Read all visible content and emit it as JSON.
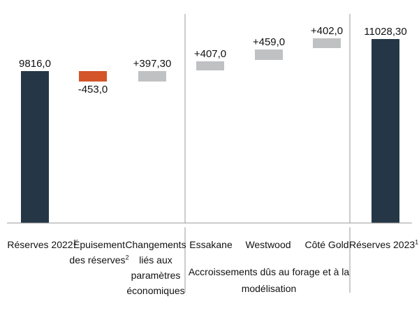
{
  "chart_data": {
    "type": "waterfall",
    "categories": [
      {
        "label": "Réserves 2022",
        "sup": "1"
      },
      {
        "label": "Épuisement des réserves",
        "sup": "2"
      },
      {
        "label": "Changements liés aux paramètres économiques",
        "sup": ""
      },
      {
        "label": "Essakane",
        "sup": ""
      },
      {
        "label": "Westwood",
        "sup": ""
      },
      {
        "label": "Côté Gold",
        "sup": ""
      },
      {
        "label": "Réserves 2023",
        "sup": "1"
      }
    ],
    "values": [
      9816.0,
      -453.0,
      397.3,
      407.0,
      459.0,
      402.0,
      11028.3
    ],
    "value_labels": [
      "9816,0",
      "-453,0",
      "+397,30",
      "+407,0",
      "+459,0",
      "+402,0",
      "11028,30"
    ],
    "kinds": [
      "total",
      "decrease",
      "increase",
      "increase",
      "increase",
      "increase",
      "total"
    ],
    "group_label": "Accroissements dûs au forage et à la modélisation",
    "colors": {
      "total": "#253746",
      "decrease": "#D35529",
      "increase": "#BFC1C3"
    },
    "legend": "none",
    "grid": false
  }
}
